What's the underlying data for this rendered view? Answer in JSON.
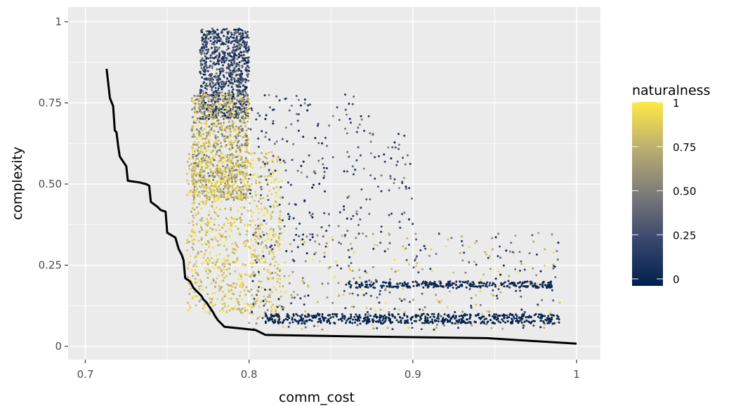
{
  "chart_data": {
    "type": "scatter",
    "xlabel": "comm_cost",
    "ylabel": "complexity",
    "xlim": [
      0.7,
      1.0
    ],
    "ylim": [
      0,
      1
    ],
    "x_ticks": [
      "0.7",
      "0.8",
      "0.9",
      "1"
    ],
    "y_ticks": [
      "0",
      "0.25",
      "0.50",
      "0.75",
      "1"
    ],
    "grid": true,
    "panel_background": "#ebebeb",
    "legend": {
      "title": "naturalness",
      "position": "right",
      "labels": [
        "0",
        "0.25",
        "0.50",
        "0.75",
        "1"
      ],
      "low_color": "#00204c",
      "mid_color": "#7c7b78",
      "high_color": "#ffe945"
    },
    "pareto_frontier": {
      "color": "#000000",
      "x": [
        0.713,
        0.715,
        0.717,
        0.718,
        0.719,
        0.72,
        0.721,
        0.723,
        0.725,
        0.726,
        0.733,
        0.737,
        0.739,
        0.74,
        0.744,
        0.746,
        0.749,
        0.75,
        0.755,
        0.757,
        0.759,
        0.76,
        0.761,
        0.764,
        0.766,
        0.769,
        0.771,
        0.772,
        0.774,
        0.776,
        0.778,
        0.779,
        0.781,
        0.785,
        0.795,
        0.804,
        0.81,
        0.87,
        0.945,
        1.0
      ],
      "y": [
        0.855,
        0.765,
        0.74,
        0.665,
        0.66,
        0.62,
        0.585,
        0.57,
        0.555,
        0.51,
        0.505,
        0.5,
        0.495,
        0.445,
        0.43,
        0.42,
        0.415,
        0.35,
        0.335,
        0.3,
        0.28,
        0.265,
        0.21,
        0.2,
        0.18,
        0.165,
        0.155,
        0.145,
        0.135,
        0.12,
        0.105,
        0.095,
        0.08,
        0.06,
        0.055,
        0.05,
        0.035,
        0.03,
        0.025,
        0.008
      ]
    },
    "point_cloud": [
      {
        "x_min": 0.77,
        "x_max": 0.8,
        "y_min": 0.7,
        "y_max": 0.98,
        "naturalness_min": 0.0,
        "naturalness_max": 0.45,
        "density": 1.0
      },
      {
        "x_min": 0.765,
        "x_max": 0.8,
        "y_min": 0.45,
        "y_max": 0.78,
        "naturalness_min": 0.45,
        "naturalness_max": 1.0,
        "density": 1.0
      },
      {
        "x_min": 0.762,
        "x_max": 0.82,
        "y_min": 0.1,
        "y_max": 0.6,
        "naturalness_min": 0.7,
        "naturalness_max": 1.0,
        "density": 1.0
      },
      {
        "x_min": 0.8,
        "x_max": 0.99,
        "y_min": 0.05,
        "y_max": 0.35,
        "naturalness_min": 0.0,
        "naturalness_max": 1.0,
        "density": 0.45
      },
      {
        "x_min": 0.8,
        "x_max": 0.9,
        "y_min": 0.3,
        "y_max": 0.78,
        "naturalness_min": 0.0,
        "naturalness_max": 0.6,
        "density": 0.3
      },
      {
        "x_min": 0.81,
        "x_max": 0.99,
        "y_min": 0.07,
        "y_max": 0.1,
        "naturalness_min": 0.0,
        "naturalness_max": 0.05,
        "density": 0.6
      },
      {
        "x_min": 0.86,
        "x_max": 0.985,
        "y_min": 0.18,
        "y_max": 0.2,
        "naturalness_min": 0.0,
        "naturalness_max": 0.1,
        "density": 0.3
      }
    ]
  }
}
